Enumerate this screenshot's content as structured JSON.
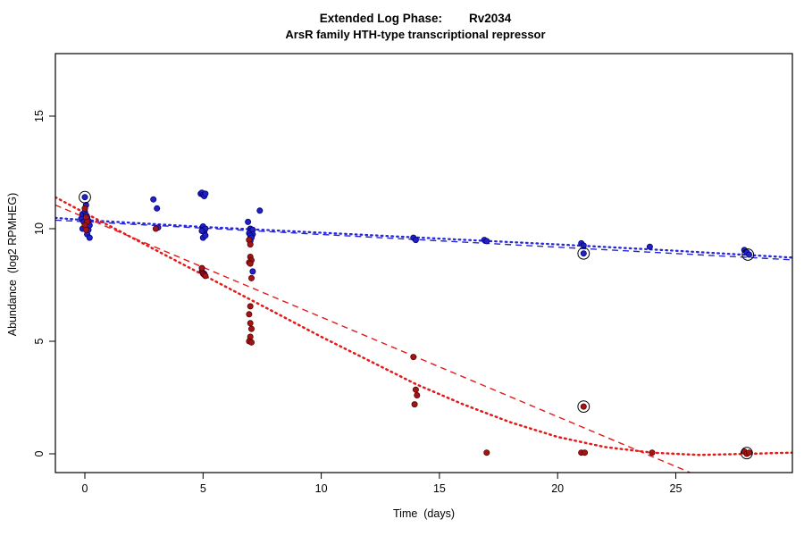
{
  "chart_data": {
    "type": "scatter",
    "title": "Extended Log Phase:        Rv2034",
    "subtitle": "ArsR family HTH-type transcriptional repressor",
    "xlabel": "Time  (days)",
    "ylabel": "Abundance  (log2 RPMHEG)",
    "xlim": [
      -1.25,
      29.9
    ],
    "ylim": [
      -0.83,
      17.8
    ],
    "xticks": [
      0,
      5,
      10,
      15,
      20,
      25
    ],
    "yticks": [
      0,
      5,
      10,
      15
    ],
    "grid": false,
    "legend": null,
    "colors": {
      "blue_point_fill": "#2222c0",
      "blue_point_stroke": "#000080",
      "red_point_fill": "#a31515",
      "red_point_stroke": "#5c0000",
      "blue_line": "#2727d8",
      "red_line": "#e41a1a",
      "outlier_ring": "#000000"
    },
    "series": [
      {
        "name": "blue-condition",
        "fill": "#2222c0",
        "stroke": "#000080",
        "points": [
          [
            -0.15,
            10.45
          ],
          [
            -0.1,
            10.0
          ],
          [
            -0.1,
            10.65
          ],
          [
            -0.05,
            10.3
          ],
          [
            0,
            11.4
          ],
          [
            0,
            10.9
          ],
          [
            0,
            10.75
          ],
          [
            0.05,
            11.05
          ],
          [
            0.05,
            10.6
          ],
          [
            0.05,
            10.2
          ],
          [
            0.1,
            10.5
          ],
          [
            0.1,
            10.05
          ],
          [
            0.1,
            9.75
          ],
          [
            0.15,
            10.35
          ],
          [
            0.15,
            9.95
          ],
          [
            0.2,
            10.15
          ],
          [
            0.2,
            9.6
          ],
          [
            2.9,
            11.3
          ],
          [
            3.05,
            10.9
          ],
          [
            3.1,
            10.05
          ],
          [
            4.9,
            11.55
          ],
          [
            4.95,
            11.6
          ],
          [
            5.0,
            11.5
          ],
          [
            5.05,
            11.45
          ],
          [
            5.1,
            11.55
          ],
          [
            5.0,
            10.1
          ],
          [
            5.0,
            9.95
          ],
          [
            5.05,
            9.85
          ],
          [
            5.1,
            10.0
          ],
          [
            4.95,
            9.9
          ],
          [
            5.0,
            9.6
          ],
          [
            5.1,
            9.7
          ],
          [
            4.95,
            8.1
          ],
          [
            5.05,
            8.0
          ],
          [
            6.9,
            10.3
          ],
          [
            7.0,
            10.0
          ],
          [
            7.0,
            9.9
          ],
          [
            7.05,
            9.85
          ],
          [
            6.95,
            9.8
          ],
          [
            7.1,
            9.95
          ],
          [
            7.1,
            9.75
          ],
          [
            7.0,
            9.7
          ],
          [
            7.05,
            9.6
          ],
          [
            6.95,
            9.5
          ],
          [
            7.0,
            9.45
          ],
          [
            7.4,
            10.8
          ],
          [
            7.1,
            8.1
          ],
          [
            13.9,
            9.6
          ],
          [
            14.0,
            9.5
          ],
          [
            16.9,
            9.5
          ],
          [
            17.0,
            9.45
          ],
          [
            21.0,
            9.35
          ],
          [
            21.1,
            9.25
          ],
          [
            21.1,
            8.9
          ],
          [
            23.9,
            9.2
          ],
          [
            27.9,
            9.05
          ],
          [
            28.0,
            8.95
          ],
          [
            28.1,
            8.85
          ]
        ]
      },
      {
        "name": "red-condition",
        "fill": "#a31515",
        "stroke": "#5c0000",
        "points": [
          [
            0,
            10.9
          ],
          [
            0.05,
            10.5
          ],
          [
            0.1,
            10.3
          ],
          [
            0,
            10.15
          ],
          [
            0.05,
            9.95
          ],
          [
            3.0,
            10.0
          ],
          [
            4.95,
            8.25
          ],
          [
            5.0,
            8.0
          ],
          [
            5.05,
            7.95
          ],
          [
            5.1,
            7.9
          ],
          [
            6.95,
            9.5
          ],
          [
            7.0,
            9.3
          ],
          [
            7.0,
            8.75
          ],
          [
            7.05,
            8.6
          ],
          [
            6.95,
            8.5
          ],
          [
            7.0,
            8.45
          ],
          [
            7.05,
            7.8
          ],
          [
            7.0,
            6.55
          ],
          [
            6.95,
            6.2
          ],
          [
            7.0,
            5.8
          ],
          [
            7.05,
            5.55
          ],
          [
            7.0,
            5.2
          ],
          [
            6.95,
            5.0
          ],
          [
            7.05,
            4.95
          ],
          [
            13.9,
            4.3
          ],
          [
            14.0,
            2.85
          ],
          [
            14.05,
            2.6
          ],
          [
            13.95,
            2.2
          ],
          [
            17.0,
            0.05
          ],
          [
            21.1,
            2.1
          ],
          [
            21.0,
            0.05
          ],
          [
            21.15,
            0.05
          ],
          [
            24.0,
            0.05
          ],
          [
            27.9,
            0.1
          ],
          [
            28.0,
            0.0
          ],
          [
            28.1,
            0.05
          ]
        ]
      }
    ],
    "circled_points": [
      [
        0,
        11.4
      ],
      [
        21.1,
        8.9
      ],
      [
        21.1,
        2.1
      ],
      [
        28.05,
        8.85
      ],
      [
        28.0,
        0.03
      ]
    ],
    "lines": [
      {
        "name": "blue-dashed-fit",
        "color": "#2727d8",
        "style": "dashed",
        "width": 1.4,
        "points": [
          [
            -1.25,
            10.38
          ],
          [
            29.9,
            8.62
          ]
        ]
      },
      {
        "name": "blue-dotted-fit",
        "color": "#2727d8",
        "style": "dotted",
        "width": 2.3,
        "points": [
          [
            -1.25,
            10.48
          ],
          [
            0,
            10.38
          ],
          [
            5,
            10.08
          ],
          [
            10,
            9.82
          ],
          [
            15,
            9.56
          ],
          [
            20,
            9.3
          ],
          [
            25,
            9.02
          ],
          [
            29.9,
            8.72
          ]
        ]
      },
      {
        "name": "red-dashed-fit",
        "color": "#e41a1a",
        "style": "dashed",
        "width": 1.4,
        "points": [
          [
            -1.25,
            11.05
          ],
          [
            25.6,
            -0.83
          ]
        ]
      },
      {
        "name": "red-dotted-fit",
        "color": "#e41a1a",
        "style": "dotted",
        "width": 2.5,
        "points": [
          [
            -1.25,
            11.4
          ],
          [
            0,
            10.7
          ],
          [
            2,
            9.6
          ],
          [
            4,
            8.5
          ],
          [
            6,
            7.4
          ],
          [
            8,
            6.3
          ],
          [
            10,
            5.2
          ],
          [
            12,
            4.15
          ],
          [
            14,
            3.1
          ],
          [
            16,
            2.2
          ],
          [
            18,
            1.4
          ],
          [
            20,
            0.75
          ],
          [
            22,
            0.3
          ],
          [
            24,
            0.05
          ],
          [
            26,
            -0.05
          ],
          [
            28,
            0.0
          ],
          [
            29.9,
            0.05
          ]
        ]
      }
    ]
  }
}
